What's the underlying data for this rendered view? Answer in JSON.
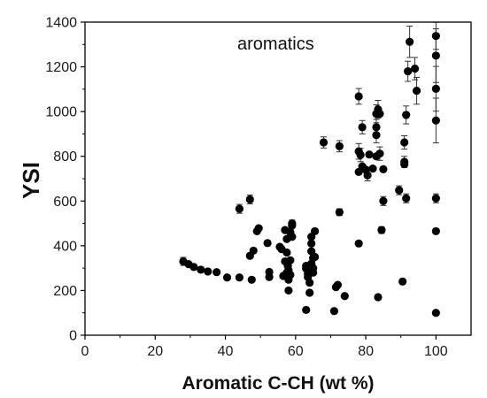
{
  "chart_data": {
    "type": "scatter",
    "title": "",
    "annotation": "aromatics",
    "xlabel": "Aromatic C-CH (wt %)",
    "ylabel": "YSI",
    "xlim": [
      0,
      110
    ],
    "ylim": [
      0,
      1400
    ],
    "xticks": [
      0,
      20,
      40,
      60,
      80,
      100
    ],
    "yticks": [
      0,
      200,
      400,
      600,
      800,
      1000,
      1200,
      1400
    ],
    "grid": false,
    "legend": "none",
    "colors": {
      "marker": "#000000",
      "axis": "#000000",
      "text": "#111111"
    },
    "series": [
      {
        "points": [
          {
            "x": 28,
            "y": 330,
            "err": 18
          },
          {
            "x": 29.5,
            "y": 318
          },
          {
            "x": 31,
            "y": 305
          },
          {
            "x": 33,
            "y": 293
          },
          {
            "x": 35,
            "y": 285
          },
          {
            "x": 37.5,
            "y": 282
          },
          {
            "x": 40.5,
            "y": 258
          },
          {
            "x": 44,
            "y": 258
          },
          {
            "x": 47.5,
            "y": 248
          },
          {
            "x": 44,
            "y": 565,
            "err": 20
          },
          {
            "x": 47,
            "y": 607,
            "err": 20
          },
          {
            "x": 47,
            "y": 355
          },
          {
            "x": 48,
            "y": 378
          },
          {
            "x": 49,
            "y": 465
          },
          {
            "x": 49.5,
            "y": 478
          },
          {
            "x": 52,
            "y": 412
          },
          {
            "x": 52.5,
            "y": 260
          },
          {
            "x": 52.5,
            "y": 283
          },
          {
            "x": 55.5,
            "y": 395
          },
          {
            "x": 56,
            "y": 385
          },
          {
            "x": 56.5,
            "y": 265
          },
          {
            "x": 57,
            "y": 330
          },
          {
            "x": 57.5,
            "y": 280
          },
          {
            "x": 57,
            "y": 470
          },
          {
            "x": 57.5,
            "y": 430
          },
          {
            "x": 57.5,
            "y": 370
          },
          {
            "x": 57.8,
            "y": 310
          },
          {
            "x": 58,
            "y": 290
          },
          {
            "x": 58,
            "y": 275
          },
          {
            "x": 58.5,
            "y": 270
          },
          {
            "x": 58,
            "y": 248
          },
          {
            "x": 58,
            "y": 200
          },
          {
            "x": 58.5,
            "y": 335
          },
          {
            "x": 58.5,
            "y": 460
          },
          {
            "x": 59,
            "y": 500,
            "err": 15
          },
          {
            "x": 59,
            "y": 490
          },
          {
            "x": 59,
            "y": 440
          },
          {
            "x": 63,
            "y": 310
          },
          {
            "x": 63,
            "y": 298
          },
          {
            "x": 63,
            "y": 113
          },
          {
            "x": 63.5,
            "y": 275
          },
          {
            "x": 63.5,
            "y": 260
          },
          {
            "x": 64,
            "y": 235
          },
          {
            "x": 64,
            "y": 190
          },
          {
            "x": 64.5,
            "y": 440
          },
          {
            "x": 64.5,
            "y": 410
          },
          {
            "x": 64.5,
            "y": 375
          },
          {
            "x": 64.5,
            "y": 320
          },
          {
            "x": 65,
            "y": 300
          },
          {
            "x": 65,
            "y": 280
          },
          {
            "x": 65,
            "y": 345
          },
          {
            "x": 65.5,
            "y": 350
          },
          {
            "x": 65.5,
            "y": 465
          },
          {
            "x": 68,
            "y": 862,
            "err": 25
          },
          {
            "x": 71,
            "y": 108
          },
          {
            "x": 71.5,
            "y": 215
          },
          {
            "x": 72,
            "y": 225
          },
          {
            "x": 72.5,
            "y": 550,
            "err": 15
          },
          {
            "x": 72.5,
            "y": 845,
            "err": 25
          },
          {
            "x": 74,
            "y": 175
          },
          {
            "x": 78,
            "y": 1068,
            "err": 35
          },
          {
            "x": 78,
            "y": 822,
            "err": 35
          },
          {
            "x": 78.5,
            "y": 806,
            "err": 30
          },
          {
            "x": 78,
            "y": 730
          },
          {
            "x": 78,
            "y": 410
          },
          {
            "x": 79,
            "y": 930,
            "err": 30
          },
          {
            "x": 79,
            "y": 755
          },
          {
            "x": 80,
            "y": 740
          },
          {
            "x": 80.5,
            "y": 715,
            "err": 25
          },
          {
            "x": 81,
            "y": 808
          },
          {
            "x": 82,
            "y": 745
          },
          {
            "x": 83,
            "y": 990,
            "err": 40
          },
          {
            "x": 83,
            "y": 930,
            "err": 35
          },
          {
            "x": 83,
            "y": 895,
            "err": 35
          },
          {
            "x": 83,
            "y": 800
          },
          {
            "x": 83.5,
            "y": 1010,
            "err": 40
          },
          {
            "x": 83.5,
            "y": 170
          },
          {
            "x": 84,
            "y": 990
          },
          {
            "x": 84,
            "y": 812,
            "err": 30
          },
          {
            "x": 84.5,
            "y": 470,
            "err": 15
          },
          {
            "x": 85,
            "y": 600,
            "err": 20
          },
          {
            "x": 85,
            "y": 742
          },
          {
            "x": 89.5,
            "y": 648,
            "err": 20
          },
          {
            "x": 90.5,
            "y": 240
          },
          {
            "x": 91,
            "y": 862,
            "err": 30
          },
          {
            "x": 91,
            "y": 775,
            "err": 25
          },
          {
            "x": 91,
            "y": 765
          },
          {
            "x": 91.5,
            "y": 985,
            "err": 40
          },
          {
            "x": 91.5,
            "y": 612,
            "err": 20
          },
          {
            "x": 92,
            "y": 1180,
            "err": 45
          },
          {
            "x": 92.5,
            "y": 1312,
            "err": 70
          },
          {
            "x": 94,
            "y": 1192,
            "err": 50
          },
          {
            "x": 94.5,
            "y": 1093,
            "err": 60
          },
          {
            "x": 100,
            "y": 1338,
            "err": 60
          },
          {
            "x": 100,
            "y": 1250,
            "err": 120
          },
          {
            "x": 100,
            "y": 1102,
            "err": 100
          },
          {
            "x": 100,
            "y": 960,
            "err": 100
          },
          {
            "x": 100,
            "y": 612,
            "err": 20
          },
          {
            "x": 100,
            "y": 465
          },
          {
            "x": 100,
            "y": 100
          }
        ]
      }
    ]
  }
}
